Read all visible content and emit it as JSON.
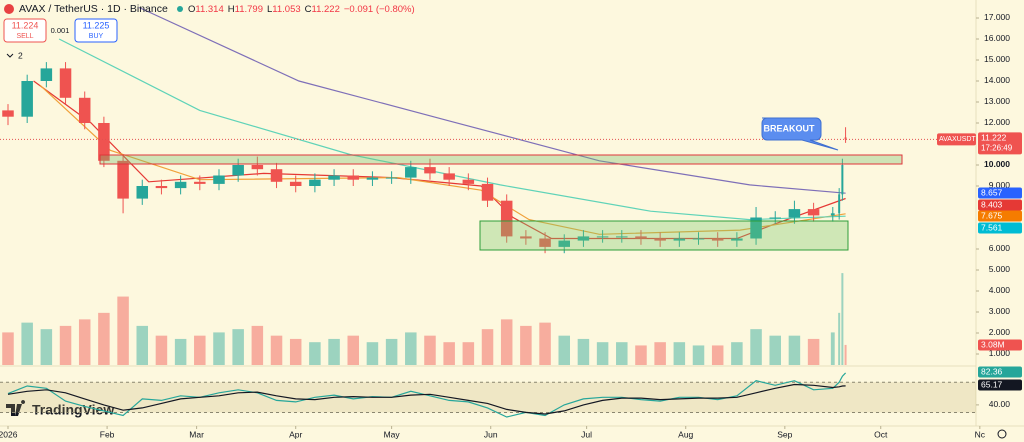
{
  "chart_data": {
    "type": "candlestick",
    "title": "AVAX / TetherUS · 1D · Binance",
    "symbol": "AVAXUSDT",
    "ohlc_letters": [
      "O",
      "H",
      "L",
      "C"
    ],
    "change": "−0.091 (−0.80%)",
    "countdown": "17:26:49",
    "sell": {
      "price": 11.224,
      "label": "SELL"
    },
    "spread": 0.001,
    "buy": {
      "price": 11.225,
      "label": "BUY"
    },
    "indicator_count": 2,
    "annotation": "BREAKOUT",
    "brand": "TradingView",
    "x": [
      0,
      6,
      12,
      18,
      24,
      30,
      36,
      42,
      48,
      54,
      60,
      66,
      72,
      78,
      84,
      90,
      96,
      102,
      108,
      114,
      120,
      126,
      132,
      138,
      144,
      150,
      156,
      162,
      168,
      174,
      180,
      186,
      192,
      198,
      204,
      210,
      216,
      222,
      228,
      234,
      240,
      246,
      252,
      258,
      260,
      261,
      262
    ],
    "open": [
      12.6,
      12.3,
      14.0,
      14.6,
      13.2,
      12.0,
      10.2,
      8.4,
      9.0,
      8.9,
      9.2,
      9.1,
      9.5,
      10.0,
      9.8,
      9.2,
      9.0,
      9.3,
      9.5,
      9.3,
      9.4,
      9.4,
      9.9,
      9.6,
      9.3,
      9.1,
      8.3,
      6.6,
      6.5,
      6.1,
      6.4,
      6.6,
      6.6,
      6.6,
      6.5,
      6.4,
      6.5,
      6.5,
      6.4,
      6.5,
      7.5,
      7.5,
      7.9,
      7.6,
      7.7,
      8.6,
      11.314
    ],
    "high": [
      12.9,
      14.3,
      14.9,
      14.9,
      13.5,
      12.3,
      10.5,
      9.3,
      9.3,
      9.5,
      9.5,
      9.8,
      10.3,
      10.4,
      10.1,
      9.5,
      9.6,
      9.8,
      9.8,
      9.7,
      9.7,
      10.2,
      10.3,
      9.9,
      9.6,
      9.4,
      8.6,
      6.9,
      6.8,
      6.7,
      6.9,
      6.9,
      6.9,
      6.9,
      6.8,
      6.8,
      6.8,
      6.8,
      6.8,
      8.0,
      7.8,
      8.3,
      8.2,
      8.0,
      8.9,
      10.3,
      11.799
    ],
    "low": [
      11.9,
      12.0,
      13.7,
      12.9,
      11.7,
      9.9,
      7.7,
      8.1,
      8.6,
      8.6,
      8.8,
      8.8,
      9.2,
      9.5,
      8.9,
      8.7,
      8.7,
      9.0,
      9.0,
      9.0,
      9.1,
      9.1,
      9.3,
      9.0,
      8.8,
      8.0,
      6.3,
      6.2,
      5.8,
      5.8,
      6.1,
      6.3,
      6.3,
      6.2,
      6.1,
      6.1,
      6.2,
      6.1,
      6.1,
      6.2,
      7.2,
      7.2,
      7.3,
      7.3,
      7.4,
      8.3,
      11.053
    ],
    "close": [
      12.3,
      14.0,
      14.6,
      13.2,
      12.0,
      10.2,
      8.4,
      9.0,
      8.9,
      9.2,
      9.1,
      9.5,
      10.0,
      9.8,
      9.2,
      9.0,
      9.3,
      9.5,
      9.3,
      9.4,
      9.4,
      9.9,
      9.6,
      9.3,
      9.1,
      8.3,
      6.6,
      6.5,
      6.1,
      6.4,
      6.6,
      6.6,
      6.6,
      6.5,
      6.4,
      6.5,
      6.5,
      6.4,
      6.5,
      7.5,
      7.5,
      7.9,
      7.6,
      7.7,
      8.6,
      10.0,
      11.222
    ],
    "up_color": "#26a69a",
    "down_color": "#ef5350",
    "xlim": [
      -2.5,
      302.8
    ],
    "xticks": [
      {
        "value": 0,
        "label": "2026"
      },
      {
        "value": 31,
        "label": "Feb"
      },
      {
        "value": 59,
        "label": "Mar"
      },
      {
        "value": 90,
        "label": "Apr"
      },
      {
        "value": 120,
        "label": "May"
      },
      {
        "value": 151,
        "label": "Jun"
      },
      {
        "value": 181,
        "label": "Jul"
      },
      {
        "value": 212,
        "label": "Aug"
      },
      {
        "value": 243,
        "label": "Sep"
      },
      {
        "value": 273,
        "label": "Oct"
      },
      {
        "value": 304,
        "label": "Nc"
      }
    ],
    "ylim": [
      0.476,
      17.857
    ],
    "yticks": [
      {
        "value": 17,
        "label": "17.000"
      },
      {
        "value": 16,
        "label": "16.000"
      },
      {
        "value": 15,
        "label": "15.000"
      },
      {
        "value": 14,
        "label": "14.000"
      },
      {
        "value": 13,
        "label": "13.000"
      },
      {
        "value": 12,
        "label": "12.000"
      },
      {
        "value": 10,
        "label": "10.000"
      },
      {
        "value": 9,
        "label": "9.000"
      },
      {
        "value": 6,
        "label": "6.000"
      },
      {
        "value": 5,
        "label": "5.000"
      },
      {
        "value": 4,
        "label": "4.000"
      },
      {
        "value": 3,
        "label": "3.000"
      },
      {
        "value": 2,
        "label": "2.000"
      },
      {
        "value": 1,
        "label": "1.000"
      }
    ],
    "series": [
      {
        "color": "#7e6fb8",
        "badge": "#2962ff",
        "x": [
          41,
          91,
          138,
          185,
          232,
          262
        ],
        "values": [
          17.5,
          14.0,
          12.1,
          10.2,
          9.05,
          8.657
        ]
      },
      {
        "color": "#e53935",
        "badge": "#e53935",
        "x": [
          8,
          26,
          44,
          80,
          120,
          148,
          158,
          170,
          228,
          240,
          262
        ],
        "values": [
          14.0,
          12.0,
          9.2,
          9.6,
          9.4,
          9.0,
          7.5,
          6.5,
          6.5,
          7.2,
          8.403
        ]
      },
      {
        "color": "#f0a13a",
        "badge": "#f57c00",
        "x": [
          10,
          32,
          60,
          122,
          148,
          163,
          185,
          229,
          262
        ],
        "values": [
          13.8,
          10.7,
          9.3,
          9.4,
          8.8,
          7.4,
          6.7,
          6.9,
          7.675
        ]
      },
      {
        "color": "#5fd3b8",
        "badge": "#00bcd4",
        "x": [
          16,
          60,
          107,
          154,
          201,
          232,
          262
        ],
        "values": [
          16.0,
          12.6,
          10.5,
          9.05,
          7.8,
          7.4,
          7.561
        ]
      }
    ],
    "volume": {
      "y2lim": [
        0,
        56
      ],
      "values": [
        5.0,
        6.5,
        5.5,
        6.0,
        7.0,
        8.0,
        10.5,
        6.0,
        4.5,
        4.0,
        4.5,
        5.0,
        5.5,
        6.0,
        4.5,
        4.0,
        3.5,
        4.0,
        4.5,
        3.5,
        4.0,
        5.0,
        4.5,
        3.5,
        3.5,
        5.5,
        7.0,
        6.0,
        6.5,
        4.5,
        4.0,
        3.5,
        3.5,
        3.0,
        3.5,
        3.5,
        3.0,
        3.0,
        3.5,
        5.5,
        4.5,
        4.5,
        4.0,
        5.0,
        8.0,
        14.1,
        3.08
      ],
      "last_label": "3.08M"
    },
    "rsi": {
      "ylim": [
        20,
        91.5
      ],
      "yticks": [
        {
          "value": 40,
          "label": "40.00"
        }
      ],
      "levels": [
        30,
        70
      ],
      "series": [
        {
          "color": "#26a69a",
          "values": [
            55,
            65,
            62,
            45,
            38,
            32,
            26,
            48,
            46,
            52,
            50,
            56,
            60,
            56,
            46,
            44,
            50,
            53,
            48,
            51,
            50,
            58,
            52,
            46,
            44,
            36,
            24,
            30,
            26,
            40,
            48,
            50,
            50,
            47,
            45,
            50,
            50,
            47,
            52,
            72,
            66,
            72,
            60,
            62,
            70,
            78,
            82.36
          ]
        },
        {
          "color": "#131722",
          "values": [
            54,
            58,
            60,
            56,
            48,
            40,
            33,
            36,
            42,
            48,
            50,
            52,
            56,
            57,
            52,
            48,
            47,
            50,
            51,
            50,
            50,
            53,
            54,
            50,
            46,
            42,
            34,
            30,
            28,
            32,
            40,
            46,
            49,
            49,
            47,
            48,
            49,
            49,
            50,
            56,
            62,
            67,
            66,
            63,
            64,
            65,
            65.17
          ]
        }
      ]
    }
  }
}
